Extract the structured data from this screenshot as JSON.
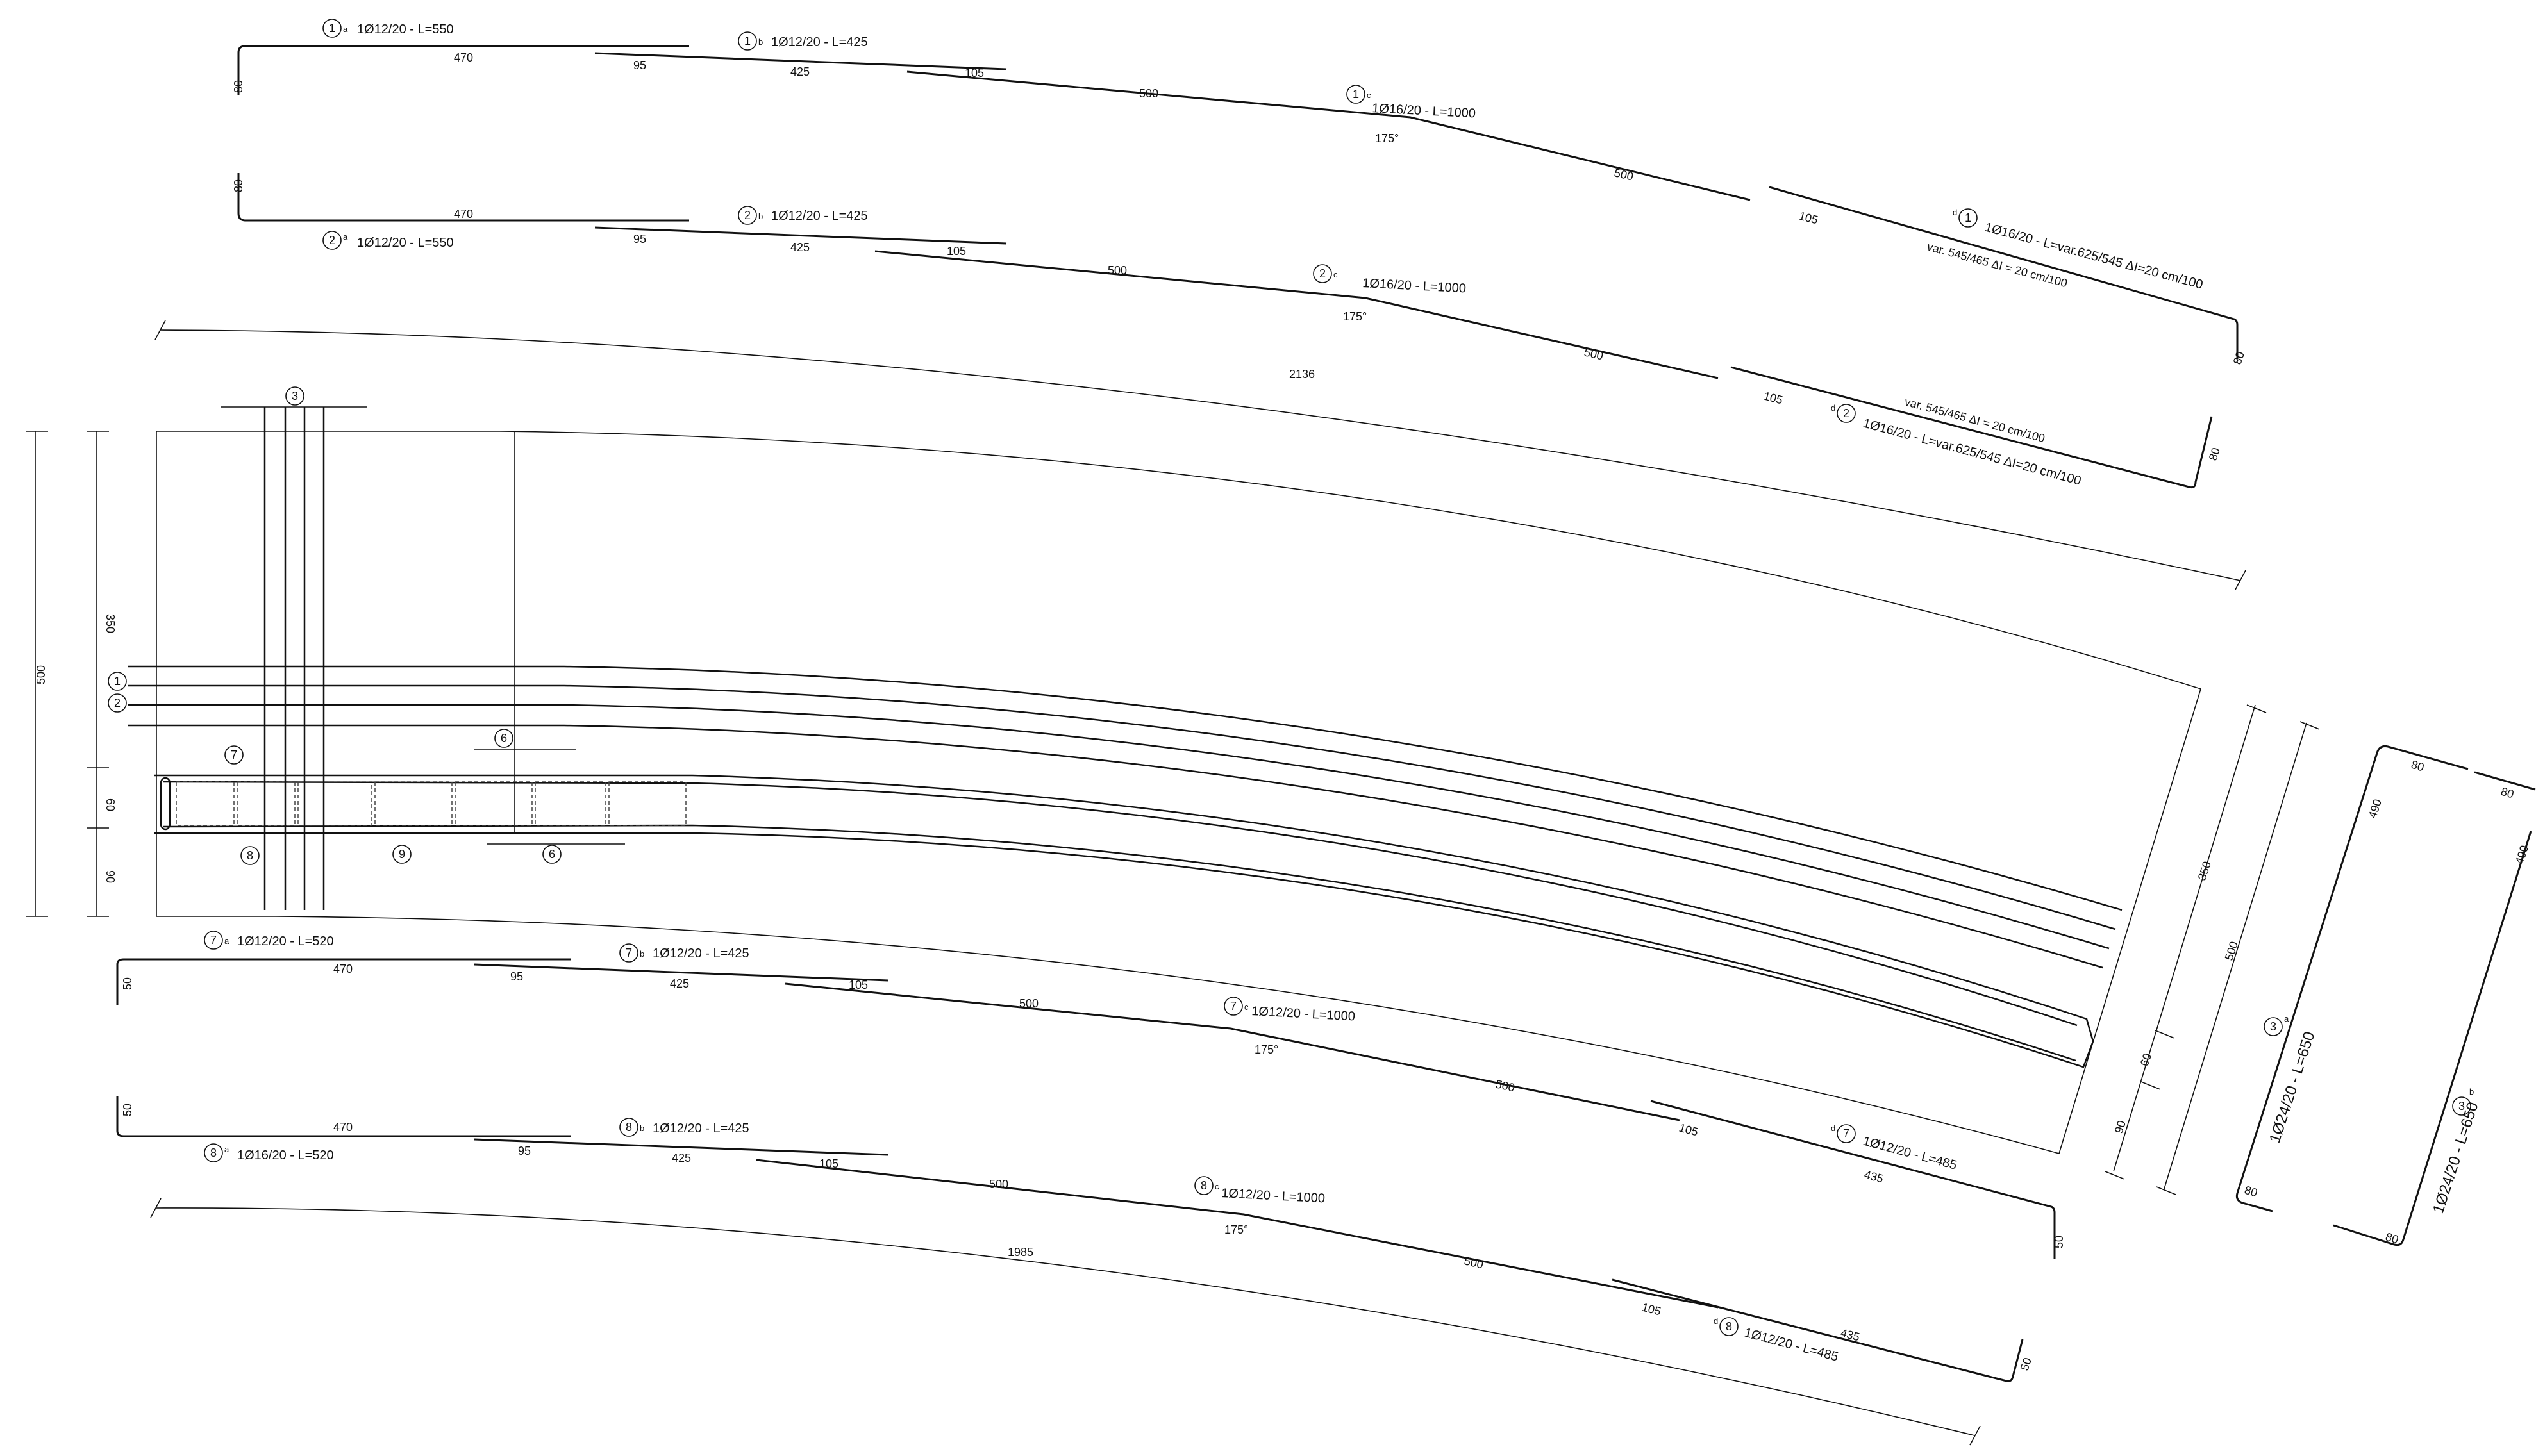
{
  "bars_top": {
    "b1a": "1Ø12/20 - L=550",
    "b1b": "1Ø12/20 - L=425",
    "b1c": "1Ø16/20 - L=1000",
    "b1d": "1Ø16/20 - L=var.625/545 ΔI=20 cm/100",
    "b1d_var": "var. 545/465 ΔI = 20 cm/100",
    "b2a": "1Ø12/20 - L=550",
    "b2b": "1Ø12/20 - L=425",
    "b2c": "1Ø16/20 - L=1000",
    "b2d": "1Ø16/20 - L=var.625/545 ΔI=20 cm/100",
    "b2d_var": "var. 545/465 ΔI = 20 cm/100"
  },
  "bars_bottom": {
    "b7a": "1Ø12/20 - L=520",
    "b7b": "1Ø12/20 - L=425",
    "b7c": "1Ø12/20 - L=1000",
    "b7d": "1Ø12/20 - L=485",
    "b8a": "1Ø16/20 - L=520",
    "b8b": "1Ø12/20 - L=425",
    "b8c": "1Ø12/20 - L=1000",
    "b8d": "1Ø12/20 - L=485"
  },
  "stirrup": {
    "label_left": "1Ø24/20 - L=650",
    "label_right": "1Ø24/20 - L=650",
    "sides": {
      "short": "80",
      "long": "490"
    }
  },
  "marks": {
    "m1": "1",
    "m2": "2",
    "m3": "3",
    "m6": "6",
    "m7": "7",
    "m8": "8",
    "m9": "9",
    "sfx_a": "a",
    "sfx_b": "b",
    "sfx_c": "c",
    "sfx_d": "d"
  },
  "dims": {
    "d470": "470",
    "d95": "95",
    "d425": "425",
    "d105": "105",
    "d500": "500",
    "d80": "80",
    "d50": "50",
    "d435": "435",
    "d60": "60",
    "d90": "90",
    "d350": "350",
    "d2136": "2136",
    "d1985": "1985",
    "angle": "175°"
  },
  "colors": {
    "line": "#111111",
    "background": "#ffffff"
  }
}
